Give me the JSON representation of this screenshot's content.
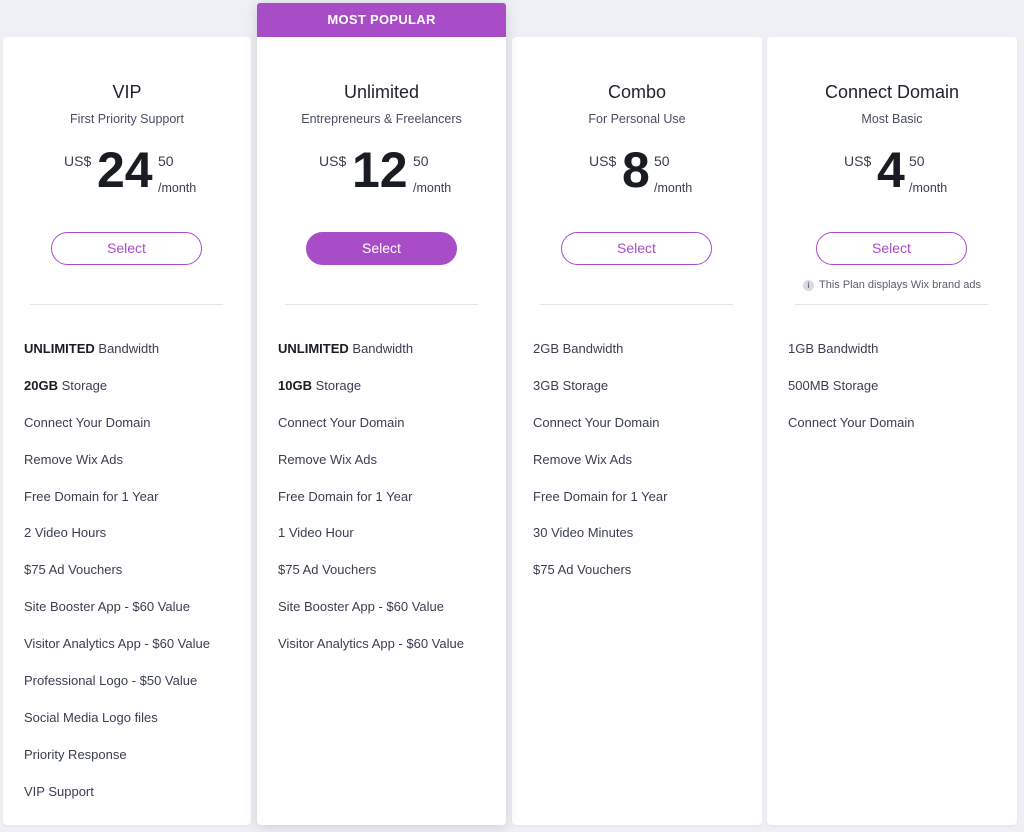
{
  "badge": "MOST POPULAR",
  "plans": [
    {
      "name": "VIP",
      "subtitle": "First Priority Support",
      "currency": "US$",
      "amount": "24",
      "cents": "50",
      "period": "/month",
      "select_label": "Select",
      "features": [
        {
          "bold": "UNLIMITED",
          "text": "Bandwidth"
        },
        {
          "bold": "20GB",
          "text": "Storage"
        },
        {
          "text": "Connect Your Domain"
        },
        {
          "text": "Remove Wix Ads"
        },
        {
          "text": "Free Domain for 1 Year"
        },
        {
          "text": "2 Video Hours"
        },
        {
          "text": "$75 Ad Vouchers"
        },
        {
          "text": "Site Booster App - $60 Value"
        },
        {
          "text": "Visitor Analytics App - $60 Value"
        },
        {
          "text": "Professional Logo - $50 Value"
        },
        {
          "text": "Social Media Logo files"
        },
        {
          "text": "Priority Response"
        },
        {
          "text": "VIP Support"
        }
      ]
    },
    {
      "name": "Unlimited",
      "subtitle": "Entrepreneurs & Freelancers",
      "currency": "US$",
      "amount": "12",
      "cents": "50",
      "period": "/month",
      "select_label": "Select",
      "features": [
        {
          "bold": "UNLIMITED",
          "text": "Bandwidth"
        },
        {
          "bold": "10GB",
          "text": "Storage"
        },
        {
          "text": "Connect Your Domain"
        },
        {
          "text": "Remove Wix Ads"
        },
        {
          "text": "Free Domain for 1 Year"
        },
        {
          "text": "1 Video Hour"
        },
        {
          "text": "$75 Ad Vouchers"
        },
        {
          "text": "Site Booster App - $60 Value"
        },
        {
          "text": "Visitor Analytics App - $60 Value"
        }
      ]
    },
    {
      "name": "Combo",
      "subtitle": "For Personal Use",
      "currency": "US$",
      "amount": "8",
      "cents": "50",
      "period": "/month",
      "select_label": "Select",
      "features": [
        {
          "text": "2GB Bandwidth"
        },
        {
          "text": "3GB Storage"
        },
        {
          "text": "Connect Your Domain"
        },
        {
          "text": "Remove Wix Ads"
        },
        {
          "text": "Free Domain for 1 Year"
        },
        {
          "text": "30 Video Minutes"
        },
        {
          "text": "$75 Ad Vouchers"
        }
      ]
    },
    {
      "name": "Connect Domain",
      "subtitle": "Most Basic",
      "currency": "US$",
      "amount": "4",
      "cents": "50",
      "period": "/month",
      "select_label": "Select",
      "ads_note": "This Plan displays Wix brand ads",
      "features": [
        {
          "text": "1GB Bandwidth"
        },
        {
          "text": "500MB Storage"
        },
        {
          "text": "Connect Your Domain"
        }
      ]
    }
  ],
  "colors": {
    "accent": "#a94cc8",
    "background": "#eef0f5",
    "card": "#ffffff"
  },
  "icons": {
    "ads_note": "info-icon"
  }
}
